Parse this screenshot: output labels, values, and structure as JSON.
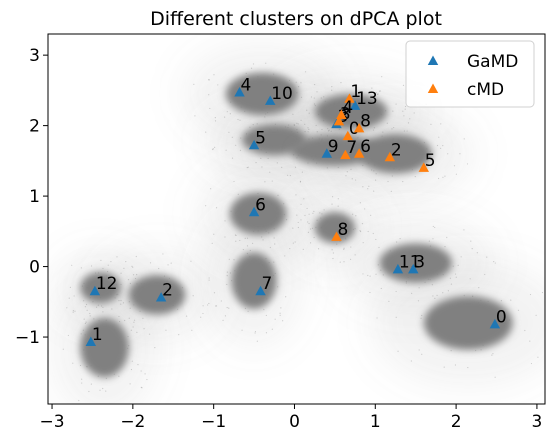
{
  "chart_data": {
    "type": "scatter",
    "title": "Different clusters on dPCA plot",
    "xlabel": "",
    "ylabel": "",
    "xlim": [
      -3.05,
      3.1
    ],
    "ylim": [
      -1.95,
      3.3
    ],
    "xticks": [
      -3,
      -2,
      -1,
      0,
      1,
      2,
      3
    ],
    "xtick_labels": [
      "−3",
      "−2",
      "−1",
      "0",
      "1",
      "2",
      "3"
    ],
    "yticks": [
      -1,
      0,
      1,
      2,
      3
    ],
    "ytick_labels": [
      "−1",
      "0",
      "1",
      "2",
      "3"
    ],
    "grid": false,
    "legend": "top-right",
    "background": {
      "description_color": "#808080",
      "density_clusters": [
        {
          "cx": -2.35,
          "cy": -1.15,
          "rx": 0.3,
          "ry": 0.42
        },
        {
          "cx": -2.4,
          "cy": -0.3,
          "rx": 0.25,
          "ry": 0.22
        },
        {
          "cx": -1.7,
          "cy": -0.4,
          "rx": 0.35,
          "ry": 0.28
        },
        {
          "cx": -0.45,
          "cy": 0.75,
          "rx": 0.35,
          "ry": 0.3
        },
        {
          "cx": -0.5,
          "cy": -0.2,
          "rx": 0.28,
          "ry": 0.4
        },
        {
          "cx": -0.4,
          "cy": 2.45,
          "rx": 0.45,
          "ry": 0.3
        },
        {
          "cx": -0.25,
          "cy": 1.8,
          "rx": 0.4,
          "ry": 0.22
        },
        {
          "cx": 0.7,
          "cy": 2.2,
          "rx": 0.45,
          "ry": 0.25
        },
        {
          "cx": 0.5,
          "cy": 1.65,
          "rx": 0.55,
          "ry": 0.22
        },
        {
          "cx": 1.25,
          "cy": 1.6,
          "rx": 0.45,
          "ry": 0.28
        },
        {
          "cx": 0.5,
          "cy": 0.55,
          "rx": 0.25,
          "ry": 0.22
        },
        {
          "cx": 1.5,
          "cy": 0.05,
          "rx": 0.45,
          "ry": 0.28
        },
        {
          "cx": 2.15,
          "cy": -0.8,
          "rx": 0.55,
          "ry": 0.38
        }
      ]
    },
    "series": [
      {
        "name": "GaMD",
        "color": "#1f77b4",
        "marker": "triangle",
        "points": [
          {
            "label": "0",
            "x": 2.48,
            "y": -0.82
          },
          {
            "label": "1",
            "x": -2.52,
            "y": -1.07
          },
          {
            "label": "2",
            "x": -1.65,
            "y": -0.44
          },
          {
            "label": "3",
            "x": 0.52,
            "y": 2.02
          },
          {
            "label": "4",
            "x": -0.68,
            "y": 2.47
          },
          {
            "label": "5",
            "x": -0.5,
            "y": 1.72
          },
          {
            "label": "6",
            "x": -0.5,
            "y": 0.77
          },
          {
            "label": "7",
            "x": -0.42,
            "y": -0.35
          },
          {
            "label": "9",
            "x": 0.4,
            "y": 1.6
          },
          {
            "label": "10",
            "x": -0.3,
            "y": 2.35
          },
          {
            "label": "11",
            "x": 1.28,
            "y": -0.04
          },
          {
            "label": "12",
            "x": -2.47,
            "y": -0.35
          },
          {
            "label": "13",
            "x": 0.75,
            "y": 2.28
          },
          {
            "label": "3",
            "x": 1.47,
            "y": -0.04
          }
        ]
      },
      {
        "name": "cMD",
        "color": "#ff7f0e",
        "marker": "triangle",
        "points": [
          {
            "label": "0",
            "x": 0.66,
            "y": 1.85
          },
          {
            "label": "1",
            "x": 0.68,
            "y": 2.38
          },
          {
            "label": "2",
            "x": 1.18,
            "y": 1.55
          },
          {
            "label": "3",
            "x": 0.55,
            "y": 2.06
          },
          {
            "label": "4",
            "x": 0.58,
            "y": 2.15
          },
          {
            "label": "5",
            "x": 1.6,
            "y": 1.4
          },
          {
            "label": "6",
            "x": 0.8,
            "y": 1.6
          },
          {
            "label": "7",
            "x": 0.63,
            "y": 1.58
          },
          {
            "label": "8",
            "x": 0.52,
            "y": 0.42
          },
          {
            "label": "8",
            "x": 0.8,
            "y": 1.96
          }
        ]
      }
    ]
  }
}
